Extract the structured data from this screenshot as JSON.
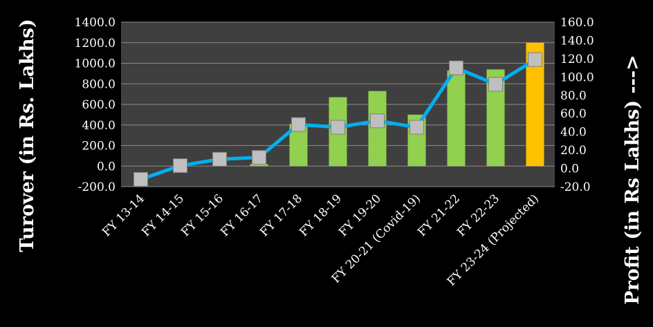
{
  "chart_data": {
    "type": "bar+line",
    "categories": [
      "FY 13-14",
      "FY 14-15",
      "FY 15-16",
      "FY 16-17",
      "FY 17-18",
      "FY 18-19",
      "FY 19-20",
      "FY 20-21 (Covid-19)",
      "FY 21-22",
      "FY 22-23",
      "FY 23-24 (Projected)"
    ],
    "series": [
      {
        "axis": "left",
        "kind": "bar",
        "values": [
          0,
          0,
          0,
          20,
          410,
          670,
          730,
          500,
          930,
          940,
          1200
        ],
        "colors": [
          "#92D050",
          "#92D050",
          "#92D050",
          "#92D050",
          "#92D050",
          "#92D050",
          "#92D050",
          "#92D050",
          "#92D050",
          "#92D050",
          "#FFC000"
        ]
      },
      {
        "axis": "right",
        "kind": "line",
        "values": [
          -12,
          3,
          10,
          12,
          48,
          45,
          52,
          45,
          110,
          92,
          119
        ],
        "color": "#00B0F0",
        "marker_color": "#BFBFBF"
      }
    ],
    "y_left": {
      "label": "Turover (in Rs. Lakhs)",
      "range": [
        -200,
        1400
      ],
      "ticks": [
        "1400.0",
        "1200.0",
        "1000.0",
        "800.0",
        "600.0",
        "400.0",
        "200.0",
        "0.0",
        "-200.0"
      ]
    },
    "y_right": {
      "label": "Profit (in Rs Lakhs) --->",
      "range": [
        -20,
        160
      ],
      "ticks": [
        "160.0",
        "140.0",
        "120.0",
        "100.0",
        "80.0",
        "60.0",
        "40.0",
        "20.0",
        "0.0",
        "-20.0"
      ]
    },
    "grid": true,
    "legend": "none",
    "plot_background": "#3F3F3F",
    "background": "#000000"
  }
}
